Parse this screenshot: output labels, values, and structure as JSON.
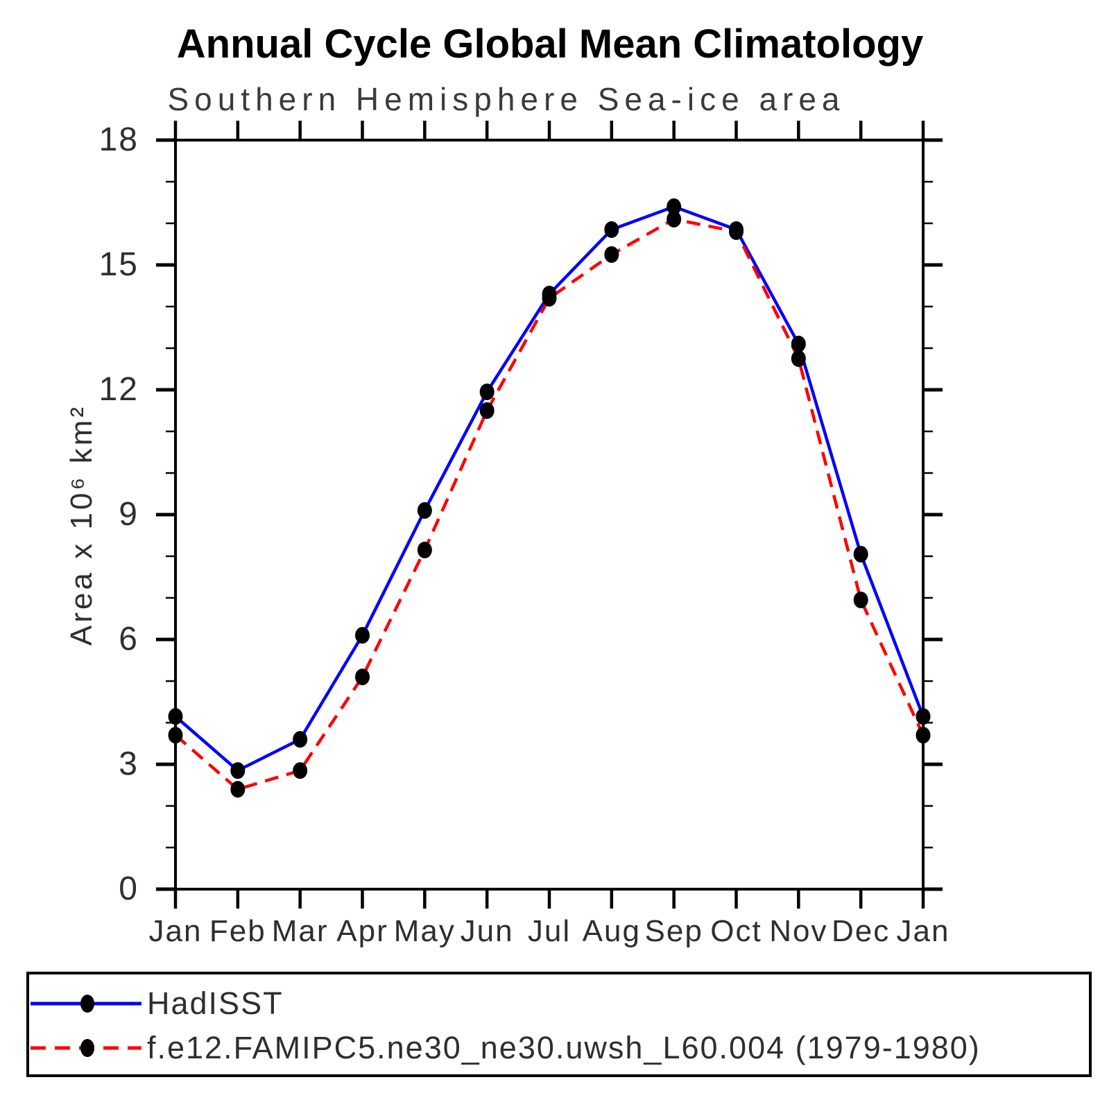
{
  "chart_data": {
    "type": "line",
    "title": "Annual Cycle Global Mean Climatology",
    "subtitle": "Southern Hemisphere Sea-ice area",
    "ylabel": "Area x 10⁶ km²",
    "xlabel": "",
    "categories": [
      "Jan",
      "Feb",
      "Mar",
      "Apr",
      "May",
      "Jun",
      "Jul",
      "Aug",
      "Sep",
      "Oct",
      "Nov",
      "Dec",
      "Jan"
    ],
    "ylim": [
      0,
      18
    ],
    "ytick_major": [
      0,
      3,
      6,
      9,
      12,
      15,
      18
    ],
    "ytick_minor_interval": 1,
    "grid": false,
    "legend_position": "bottom",
    "axis_color": "#000000",
    "marker_color": "#000000",
    "series": [
      {
        "name": "HadISST",
        "color": "#0000ff",
        "style": "solid",
        "values": [
          4.15,
          2.85,
          3.6,
          6.1,
          9.1,
          11.95,
          14.3,
          15.85,
          16.4,
          15.85,
          13.1,
          8.05,
          4.15
        ]
      },
      {
        "name": "f.e12.FAMIPC5.ne30_ne30.uwsh_L60.004 (1979-1980)",
        "color": "#ff0000",
        "style": "dashed",
        "values": [
          3.7,
          2.4,
          2.85,
          5.1,
          8.15,
          11.5,
          14.2,
          15.25,
          16.1,
          15.8,
          12.75,
          6.95,
          3.7
        ]
      }
    ]
  }
}
